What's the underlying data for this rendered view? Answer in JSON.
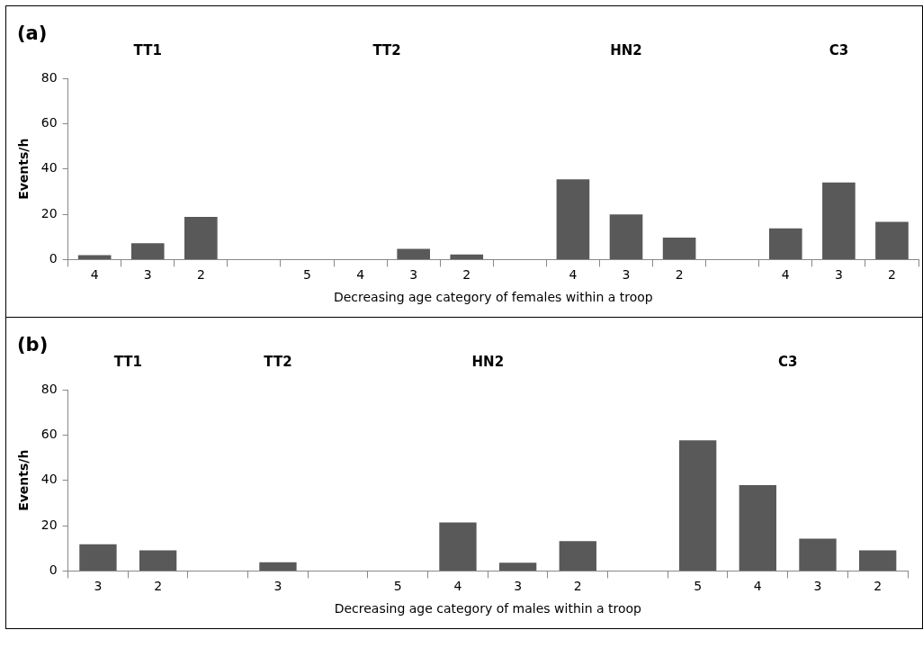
{
  "chart_data": [
    {
      "type": "bar",
      "title": "(a)",
      "xlabel": "Decreasing age category of females within a troop",
      "ylabel": "Events/h",
      "categories": [
        "4",
        "3",
        "2",
        null,
        "5",
        "4",
        "3",
        "2",
        null,
        "4",
        "3",
        "2",
        null,
        "4",
        "3",
        "2"
      ],
      "values": [
        1.9,
        7.2,
        18.8,
        null,
        0,
        0,
        4.7,
        2.2,
        null,
        35.4,
        19.9,
        9.7,
        null,
        13.8,
        34,
        16.6
      ],
      "color": "#595959",
      "ylim": [
        0,
        80
      ],
      "yticks": [
        0,
        20,
        40,
        60,
        80
      ],
      "grid": false,
      "legend": false,
      "annotations": [
        "TT1",
        "TT2",
        "HN2",
        "C3"
      ]
    },
    {
      "type": "bar",
      "title": "(b)",
      "xlabel": "Decreasing age category of males within a troop",
      "ylabel": "Events/h",
      "categories": [
        "3",
        "2",
        null,
        "3",
        null,
        "5",
        "4",
        "3",
        "2",
        null,
        "5",
        "4",
        "3",
        "2"
      ],
      "values": [
        11.8,
        9.1,
        null,
        3.8,
        null,
        0,
        21.4,
        3.6,
        13.2,
        null,
        57.7,
        37.9,
        14.3,
        9.1
      ],
      "color": "#595959",
      "ylim": [
        0,
        80
      ],
      "yticks": [
        0,
        20,
        40,
        60,
        80
      ],
      "grid": false,
      "legend": false,
      "annotations": [
        "TT1",
        "TT2",
        "HN2",
        "C3"
      ]
    }
  ]
}
